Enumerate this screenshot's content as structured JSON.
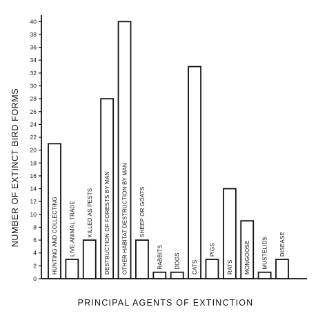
{
  "chart_data": {
    "type": "bar",
    "ylabel": "NUMBER OF EXTINCT BIRD FORMS",
    "xlabel": "PRINCIPAL  AGENTS OF EXTINCTION",
    "ylim": [
      0,
      41
    ],
    "yticks": [
      0,
      2,
      4,
      6,
      8,
      10,
      12,
      14,
      16,
      18,
      20,
      22,
      24,
      26,
      28,
      30,
      32,
      34,
      36,
      38,
      40
    ],
    "grid": false,
    "categories": [
      "HUNTING AND COLLECTING",
      "LIVE ANIMAL TRADE",
      "KILLED AS PESTS",
      "DESTRUCTION OF FORESTS BY MAN",
      "OTHER HABITAT DESTRUCTION BY MAN",
      "SHEEP OR GOATS",
      "RABBITS",
      "DOGS",
      "CATS",
      "PIGS",
      "RATS",
      "MONGOOSE",
      "MUSTELIDS",
      "DISEASE"
    ],
    "values": [
      21,
      3,
      6,
      28,
      40,
      6,
      1,
      1,
      33,
      3,
      14,
      9,
      1,
      3
    ]
  }
}
